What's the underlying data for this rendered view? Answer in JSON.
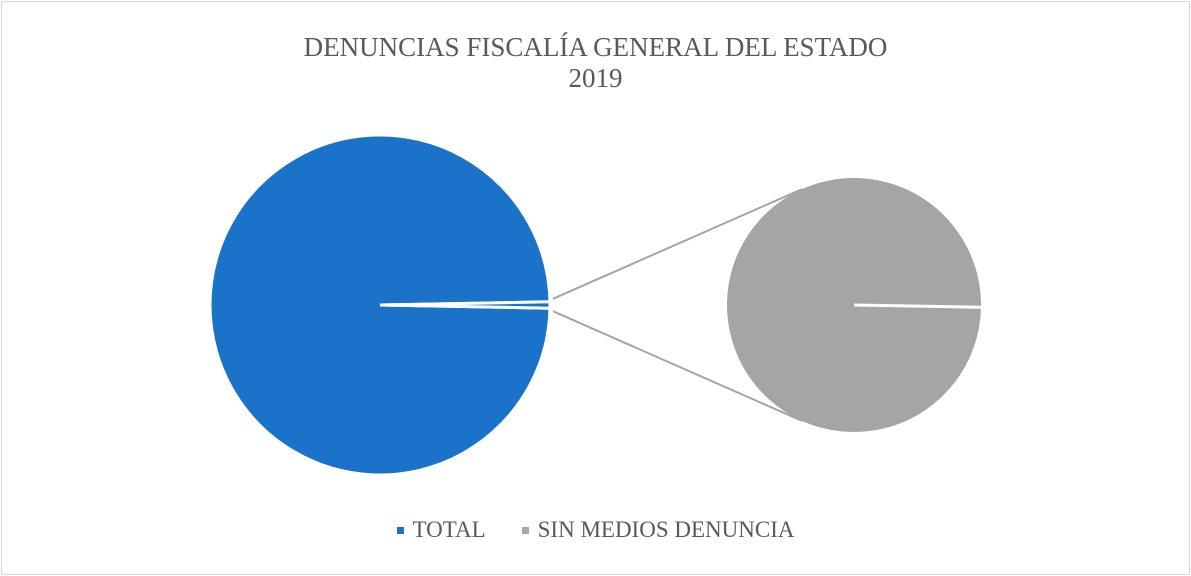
{
  "chart_data": {
    "type": "pie",
    "subtype": "pie-of-pie",
    "title": "DENUNCIAS FISCALÍA GENERAL DEL ESTADO",
    "subtitle": "2019",
    "categories": [
      "TOTAL",
      "SIN MEDIOS DENUNCIA"
    ],
    "values": [
      99.4,
      0.6
    ],
    "secondary": {
      "categories": [
        "SIN MEDIOS DENUNCIA"
      ],
      "values": [
        100
      ]
    },
    "colors": {
      "TOTAL": "#1a73c8",
      "SIN MEDIOS DENUNCIA": "#a5a5a5",
      "connector": "#a5a5a5",
      "separator": "#ffffff"
    },
    "legend_position": "bottom"
  }
}
